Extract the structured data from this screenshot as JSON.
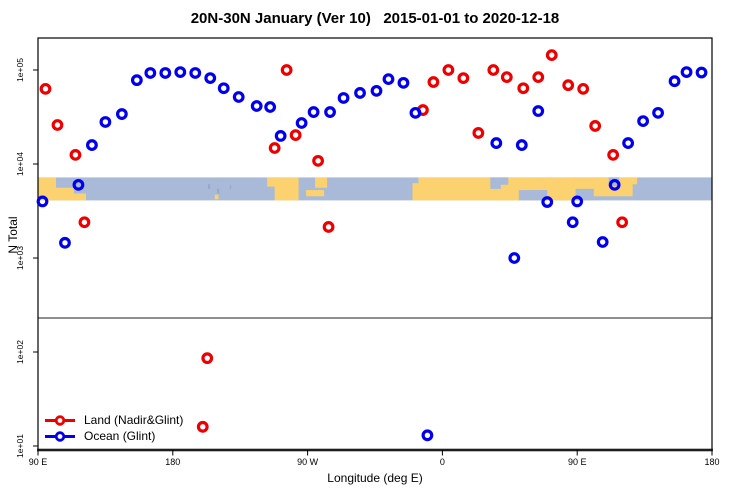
{
  "chart_data": {
    "type": "scatter",
    "title": "20N-30N January (Ver 10)   2015-01-01 to 2020-12-18",
    "xlabel": "Longitude (deg E)",
    "ylabel": "N Total",
    "x_axis": {
      "min": 90,
      "max": 540,
      "ticks": [
        {
          "lon": 90,
          "label": "90 E"
        },
        {
          "lon": 180,
          "label": "180"
        },
        {
          "lon": 270,
          "label": "90 W"
        },
        {
          "lon": 360,
          "label": "0"
        },
        {
          "lon": 450,
          "label": "90 E"
        },
        {
          "lon": 540,
          "label": "180"
        }
      ]
    },
    "y_axis": {
      "scale": "log10",
      "min": 9,
      "max": 220000,
      "ticks": [
        {
          "value": 100000,
          "label": "1e+05"
        },
        {
          "value": 10000,
          "label": "1e+04"
        },
        {
          "value": 1000,
          "label": "1e+03"
        },
        {
          "value": 100,
          "label": "1e+02"
        },
        {
          "value": 10,
          "label": "1e+01"
        }
      ]
    },
    "grid": false,
    "reference_line": {
      "value": 230,
      "color": "#909090"
    },
    "axis_line_color": "#4d4d4d",
    "map_band": {
      "value_top": 7200,
      "value_bottom": 4100,
      "ocean_color": "#a9bad8",
      "land_color": "#fbd26f",
      "island_color": "#93a9cc",
      "land_segments": [
        [
          90,
          102,
          0,
          1
        ],
        [
          100,
          114,
          0.45,
          1
        ],
        [
          112,
          122,
          0.7,
          1
        ],
        [
          208,
          210.5,
          0.75,
          0.95
        ],
        [
          243,
          250,
          0,
          0.4
        ],
        [
          248,
          264,
          0,
          1
        ],
        [
          269,
          281,
          0.55,
          0.82
        ],
        [
          275,
          283,
          0,
          0.45
        ],
        [
          340,
          346,
          0.25,
          1
        ],
        [
          344,
          397,
          0,
          1
        ],
        [
          396,
          421,
          0,
          1
        ],
        [
          419,
          433,
          0,
          0.55
        ],
        [
          430,
          449,
          0,
          1
        ],
        [
          448,
          472,
          0,
          0.5
        ],
        [
          461,
          487,
          0,
          0.82
        ],
        [
          484,
          490,
          0,
          0.3
        ]
      ],
      "ocean_notches": [
        [
          392,
          399,
          0,
          0.5
        ],
        [
          398.5,
          404,
          0,
          0.32
        ],
        [
          411,
          429,
          0.55,
          1
        ],
        [
          449,
          461,
          0.5,
          1
        ],
        [
          471,
          478,
          0,
          0.38
        ]
      ],
      "island_specks": [
        [
          203.5,
          205,
          0.3,
          0.5
        ],
        [
          209.5,
          211,
          0.5,
          0.7
        ],
        [
          218,
          219,
          0.35,
          0.5
        ]
      ]
    },
    "legend": {
      "position": "bottom-left",
      "items": [
        {
          "label": "Land (Nadir&Glint)",
          "color": "#ee0000"
        },
        {
          "label": "Ocean (Glint)",
          "color": "#0000ee"
        }
      ]
    },
    "series": [
      {
        "name": "Land (Nadir&Glint)",
        "color": "#ee0000",
        "marker": "open-circle",
        "points": [
          {
            "lon": 95,
            "n": 63000
          },
          {
            "lon": 103,
            "n": 26000
          },
          {
            "lon": 115,
            "n": 12500
          },
          {
            "lon": 121,
            "n": 2400
          },
          {
            "lon": 200,
            "n": 16
          },
          {
            "lon": 203,
            "n": 86
          },
          {
            "lon": 248,
            "n": 14800
          },
          {
            "lon": 256,
            "n": 100000
          },
          {
            "lon": 262,
            "n": 20300
          },
          {
            "lon": 277,
            "n": 10800
          },
          {
            "lon": 284,
            "n": 2140
          },
          {
            "lon": 347,
            "n": 37500
          },
          {
            "lon": 354,
            "n": 74500
          },
          {
            "lon": 364,
            "n": 100000
          },
          {
            "lon": 374,
            "n": 82000
          },
          {
            "lon": 384,
            "n": 21400
          },
          {
            "lon": 394,
            "n": 100000
          },
          {
            "lon": 403,
            "n": 84000
          },
          {
            "lon": 414,
            "n": 64000
          },
          {
            "lon": 424,
            "n": 84000
          },
          {
            "lon": 433,
            "n": 144000
          },
          {
            "lon": 444,
            "n": 69000
          },
          {
            "lon": 454,
            "n": 63000
          },
          {
            "lon": 462,
            "n": 25400
          },
          {
            "lon": 474,
            "n": 12500
          },
          {
            "lon": 480,
            "n": 2400
          }
        ]
      },
      {
        "name": "Ocean (Glint)",
        "color": "#0000ee",
        "marker": "open-circle",
        "points": [
          {
            "lon": 93,
            "n": 4000
          },
          {
            "lon": 108,
            "n": 1450
          },
          {
            "lon": 117,
            "n": 6000
          },
          {
            "lon": 126,
            "n": 15900
          },
          {
            "lon": 135,
            "n": 28000
          },
          {
            "lon": 146,
            "n": 34000
          },
          {
            "lon": 156,
            "n": 78000
          },
          {
            "lon": 165,
            "n": 93000
          },
          {
            "lon": 175,
            "n": 93000
          },
          {
            "lon": 185,
            "n": 95000
          },
          {
            "lon": 195,
            "n": 93000
          },
          {
            "lon": 205,
            "n": 82000
          },
          {
            "lon": 214,
            "n": 64000
          },
          {
            "lon": 224,
            "n": 51600
          },
          {
            "lon": 236,
            "n": 41400
          },
          {
            "lon": 245,
            "n": 40400
          },
          {
            "lon": 252,
            "n": 19900
          },
          {
            "lon": 266,
            "n": 27300
          },
          {
            "lon": 274,
            "n": 35700
          },
          {
            "lon": 285,
            "n": 35700
          },
          {
            "lon": 294,
            "n": 50400
          },
          {
            "lon": 305,
            "n": 57000
          },
          {
            "lon": 316,
            "n": 60000
          },
          {
            "lon": 324,
            "n": 80000
          },
          {
            "lon": 334,
            "n": 73000
          },
          {
            "lon": 342,
            "n": 35000
          },
          {
            "lon": 350,
            "n": 13
          },
          {
            "lon": 396,
            "n": 16700
          },
          {
            "lon": 408,
            "n": 1000
          },
          {
            "lon": 413,
            "n": 15900
          },
          {
            "lon": 424,
            "n": 36600
          },
          {
            "lon": 430,
            "n": 3940
          },
          {
            "lon": 447,
            "n": 2400
          },
          {
            "lon": 450,
            "n": 4000
          },
          {
            "lon": 467,
            "n": 1480
          },
          {
            "lon": 475,
            "n": 6000
          },
          {
            "lon": 484,
            "n": 16700
          },
          {
            "lon": 494,
            "n": 28600
          },
          {
            "lon": 504,
            "n": 35000
          },
          {
            "lon": 515,
            "n": 76000
          },
          {
            "lon": 523,
            "n": 95000
          },
          {
            "lon": 533,
            "n": 94000
          }
        ]
      }
    ]
  }
}
